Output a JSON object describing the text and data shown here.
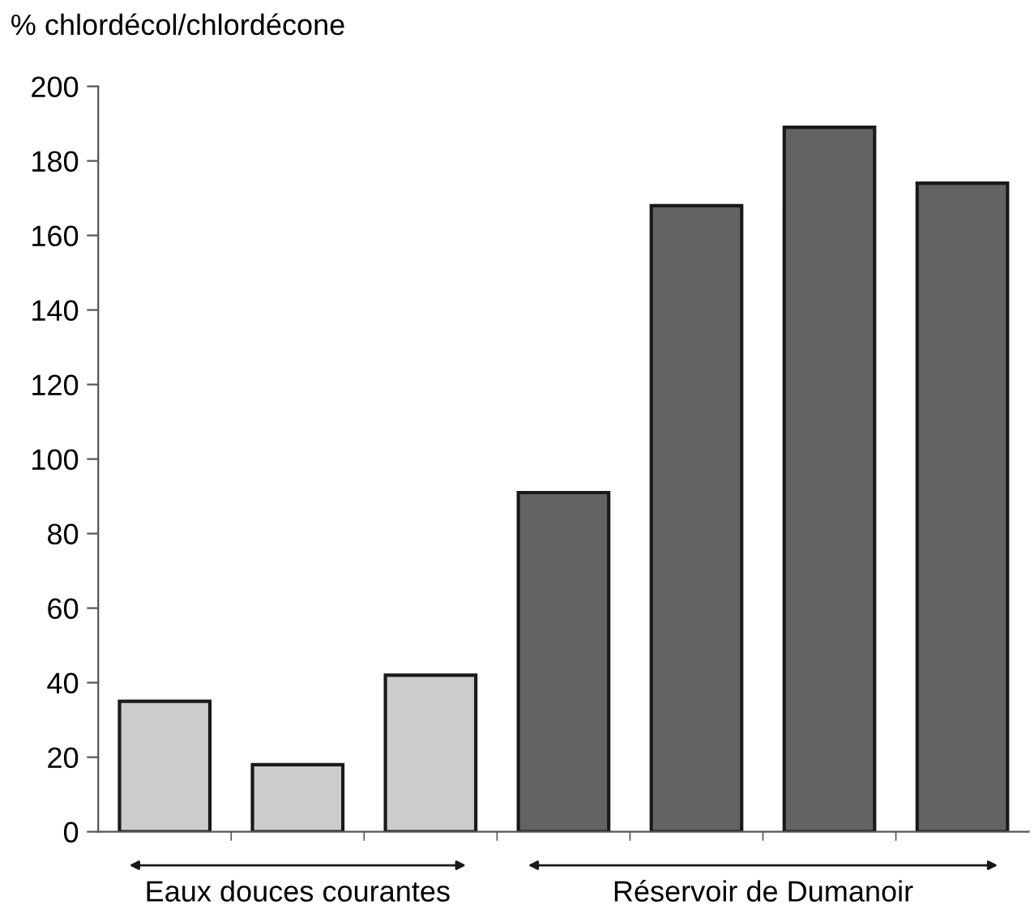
{
  "chart_data": {
    "type": "bar",
    "ylabel": "% chlordécol/chlordécone",
    "categories": [
      null,
      null,
      null,
      null,
      null,
      null,
      null
    ],
    "values": [
      35,
      18,
      42,
      91,
      168,
      189,
      174
    ],
    "colors": [
      "#cccccc",
      "#cccccc",
      "#cccccc",
      "#636363",
      "#636363",
      "#636363",
      "#636363"
    ],
    "ylim": [
      0,
      200
    ],
    "yticks": [
      0,
      20,
      40,
      60,
      80,
      100,
      120,
      140,
      160,
      180,
      200
    ],
    "annotations": [
      "Eaux douces courantes",
      "Réservoir de Dumanoir"
    ]
  }
}
